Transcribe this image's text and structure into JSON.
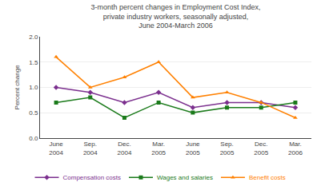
{
  "chart_data": {
    "type": "line",
    "title": "3-month percent changes in Employment Cost Index,\nprivate industry workers, seasonally adjusted,\nJune 2004-March 2006",
    "ylabel": "Percent change",
    "categories": [
      "June\n2004",
      "Sep.\n2004",
      "Dec.\n2004",
      "Mar.\n2005",
      "June\n2005",
      "Sep.\n2005",
      "Dec.\n2005",
      "Mar.\n2006"
    ],
    "series": [
      {
        "name": "Compensation costs",
        "color": "#7b2f8e",
        "marker": "diamond",
        "values": [
          1.0,
          0.9,
          0.7,
          0.9,
          0.6,
          0.7,
          0.7,
          0.6
        ]
      },
      {
        "name": "Wages and salaries",
        "color": "#1a7a1a",
        "marker": "square",
        "values": [
          0.7,
          0.8,
          0.4,
          0.7,
          0.5,
          0.6,
          0.6,
          0.7
        ]
      },
      {
        "name": "Benefit costs",
        "color": "#ff8000",
        "marker": "triangle-up",
        "values": [
          1.6,
          1.0,
          1.2,
          1.5,
          0.8,
          0.9,
          0.7,
          0.4
        ]
      }
    ],
    "ylim": [
      0.0,
      2.0
    ],
    "yticks": [
      {
        "value": 0.0,
        "label": "0.0"
      },
      0.5,
      {
        "value": 1.0,
        "label": "1.0"
      },
      1.5,
      {
        "value": 2.0,
        "label": "2.0"
      }
    ],
    "grid": true,
    "legend": "bottom"
  }
}
